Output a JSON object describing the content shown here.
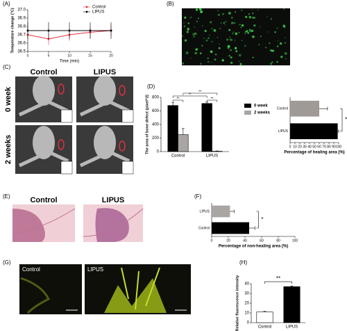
{
  "panel_labels": [
    "(A)",
    "(B)",
    "(C)",
    "(D)",
    "(E)",
    "(F)",
    "(G)",
    "(H)"
  ],
  "images": {
    "C": {
      "columns": [
        "Control",
        "LIPUS"
      ],
      "rows": [
        "0 week",
        "2 weeks"
      ]
    },
    "E": {
      "labels": [
        "Control",
        "LIPUS"
      ]
    },
    "G": {
      "labels": [
        "Control",
        "LIPUS"
      ]
    }
  },
  "chart_data": [
    {
      "type": "line",
      "x_label": "Time (min)",
      "y_label": "Temperature change (°C)",
      "x": [
        0,
        5,
        10,
        15,
        20
      ],
      "xlim": [
        0,
        20
      ],
      "xticks": [
        0,
        5,
        10,
        15,
        20
      ],
      "ylim": [
        36.5,
        37
      ],
      "yticks": [
        36.5,
        36.6,
        36.7,
        36.8,
        36.9,
        {
          "value": 37,
          "label": "37.0"
        }
      ],
      "legend": "upper right",
      "series": [
        {
          "name": "Control",
          "color": "#e0303f",
          "values": [
            36.7,
            36.65,
            36.7,
            36.73,
            36.75
          ],
          "errors": [
            0.05,
            0.07,
            0.07,
            0.07,
            0.07
          ]
        },
        {
          "name": "LIPUS",
          "color": "#000000",
          "values": [
            36.75,
            36.75,
            36.75,
            36.75,
            36.75
          ],
          "errors": [
            0.1,
            0.1,
            0.1,
            0.1,
            0.1
          ]
        }
      ]
    },
    {
      "type": "bar",
      "y_label": "The area of bone defect (pixel^2)",
      "categories": [
        "Control",
        "LIPUS"
      ],
      "ylim": [
        0,
        800
      ],
      "yticks": [
        0,
        200,
        400,
        600,
        800
      ],
      "legend": "right",
      "series": [
        {
          "name": "0 week",
          "color": "#000000",
          "values": [
            680,
            710
          ],
          "errors": [
            40,
            20
          ]
        },
        {
          "name": "2 weeks",
          "color": "#a9a5a3",
          "values": [
            250,
            5
          ],
          "errors": [
            90,
            5
          ]
        }
      ],
      "annotations": [
        "**",
        "**",
        "**",
        "**"
      ]
    },
    {
      "type": "hbar",
      "x_label": "Percentage of healing area (%)",
      "categories": [
        "Control",
        "LIPUS"
      ],
      "values": [
        60,
        98
      ],
      "errors": [
        17,
        2
      ],
      "colors": [
        "#a09a96",
        "#000000"
      ],
      "xlim": [
        0,
        100
      ],
      "xticks": [
        0,
        10,
        20,
        30,
        40,
        50,
        60,
        70,
        80,
        90,
        100
      ],
      "annotations": [
        "*"
      ]
    },
    {
      "type": "hbar",
      "x_label": "Percentage of non-healing area (%)",
      "categories": [
        "LIPUS",
        "Control"
      ],
      "values": [
        22,
        45
      ],
      "errors": [
        5,
        7
      ],
      "colors": [
        "#a9a5a3",
        "#000000"
      ],
      "xlim": [
        0,
        100
      ],
      "xticks": [
        0,
        20,
        40,
        60,
        80,
        100
      ],
      "annotations": [
        "*"
      ]
    },
    {
      "type": "bar",
      "y_label": "Relative fluorescence intensity",
      "categories": [
        "Control",
        "LIPUS"
      ],
      "values": [
        11,
        37
      ],
      "errors": [
        0.6,
        0.8
      ],
      "colors": [
        "#ffffff",
        "#000000"
      ],
      "ylim": [
        0,
        40
      ],
      "yticks": [
        0,
        10,
        20,
        30,
        40
      ],
      "annotations": [
        "**"
      ]
    }
  ]
}
